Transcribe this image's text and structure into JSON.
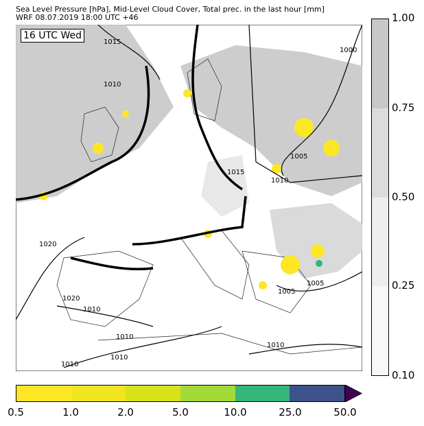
{
  "title_line1": "Sea Level Pressure [hPa], Mid-Level Cloud Cover, Total prec. in the last hour [mm]",
  "title_line2": "WRF 08.07.2019 18:00 UTC +46",
  "time_label": "16 UTC Wed",
  "isobar_labels": [
    "1015",
    "1010",
    "1000",
    "1005",
    "1010",
    "1015",
    "1020",
    "1020",
    "1010",
    "1010",
    "1010",
    "1010",
    "1010",
    "1005",
    "1005",
    "1010"
  ],
  "cloud_colorbar": {
    "ticks": [
      "1.00",
      "0.75",
      "0.50",
      "0.25",
      "0.10"
    ],
    "colors": [
      "#c8c8c8",
      "#dcdcdc",
      "#eeeeee",
      "#f8f8f8"
    ]
  },
  "precip_colorbar": {
    "ticks": [
      "0.5",
      "1.0",
      "2.0",
      "5.0",
      "10.0",
      "25.0",
      "50.0"
    ],
    "colors": [
      "#fde725",
      "#f0e51e",
      "#d8e219",
      "#a2da37",
      "#32b67a",
      "#3b528b",
      "#440154"
    ]
  }
}
